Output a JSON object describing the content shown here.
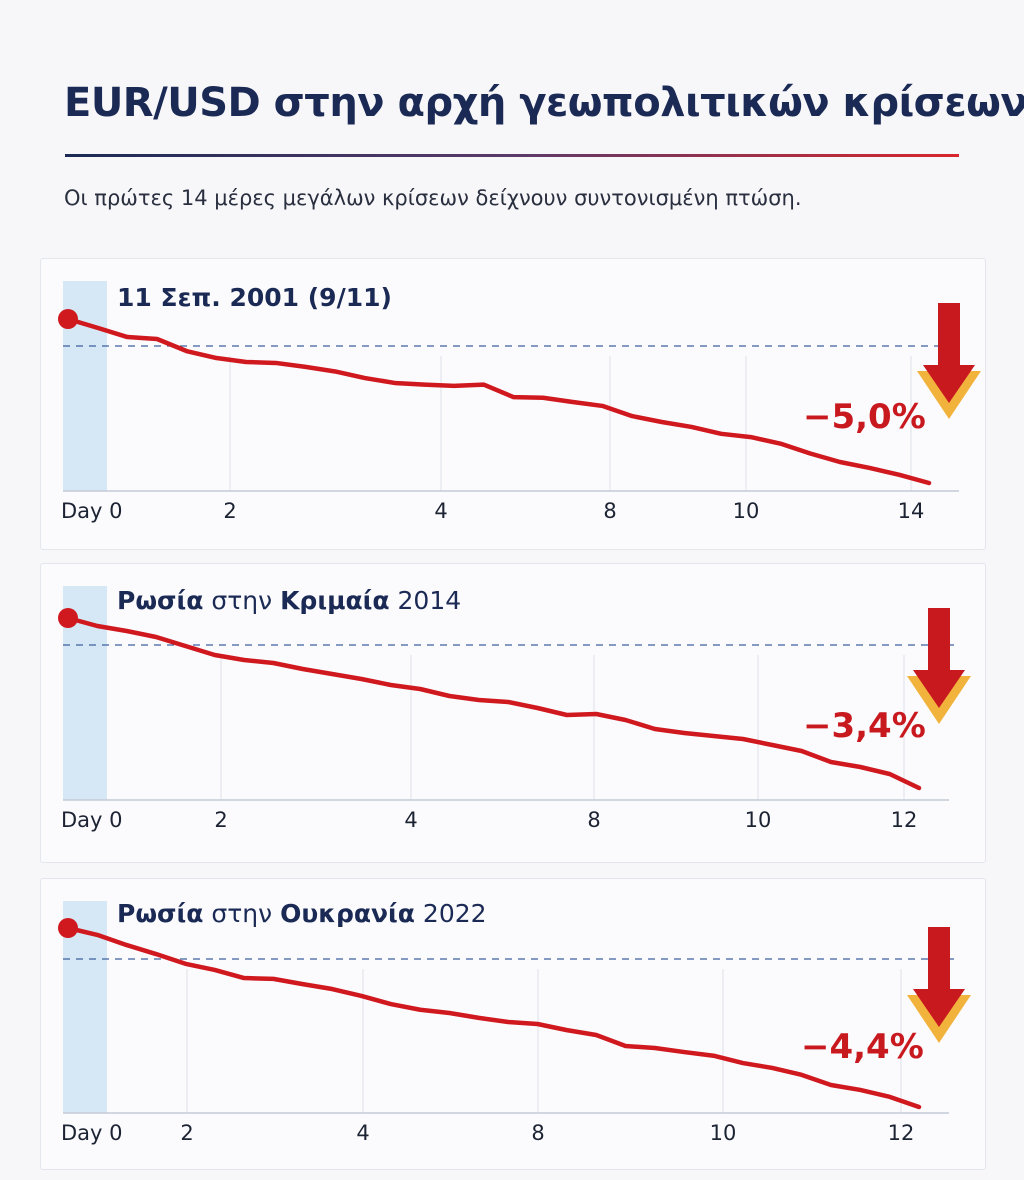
{
  "title": "EUR/USD στην αρχή γεωπολιτικών κρίσεων",
  "subtitle": "Οι πρώτες 14 μέρες μεγάλων κρίσεων δείχνουν συντονισμένη πτώση.",
  "colors": {
    "title": "#1b2a55",
    "line": "#d0191f",
    "arrow": "#c8191f",
    "arrow_outline": "#f2b33d",
    "highlight_band": "#d6e8f6",
    "reference_line": "#3e5f9e"
  },
  "chart_data": [
    {
      "type": "line",
      "title_parts": [
        {
          "text": "11 Σεπ. 2001 (9/11)",
          "bold": true
        }
      ],
      "xlabel": "",
      "ylabel": "",
      "x_tick_labels": [
        "Day 0",
        "2",
        "4",
        "8",
        "10",
        "14"
      ],
      "reference_line": "dashed",
      "grid": "vertical",
      "y_unit": "% change from Day 0",
      "values": [
        0,
        -0.27,
        -0.55,
        -0.61,
        -0.98,
        -1.19,
        -1.31,
        -1.34,
        -1.46,
        -1.6,
        -1.8,
        -1.95,
        -2.0,
        -2.04,
        -2.0,
        -2.38,
        -2.4,
        -2.53,
        -2.65,
        -2.96,
        -3.14,
        -3.29,
        -3.5,
        -3.6,
        -3.8,
        -4.1,
        -4.36,
        -4.54,
        -4.75,
        -5.0
      ],
      "change_label": "−5,0%",
      "icon": "down-arrow-icon"
    },
    {
      "type": "line",
      "title_parts": [
        {
          "text": "Ρωσία",
          "bold": true
        },
        {
          "text": " στην ",
          "bold": false
        },
        {
          "text": "Κριμαία",
          "bold": true
        },
        {
          "text": " 2014",
          "bold": false
        }
      ],
      "xlabel": "",
      "ylabel": "",
      "x_tick_labels": [
        "Day 0",
        "2",
        "4",
        "8",
        "10",
        "12"
      ],
      "reference_line": "dashed",
      "grid": "vertical",
      "y_unit": "% change from Day 0",
      "values": [
        0,
        -0.16,
        -0.26,
        -0.38,
        -0.56,
        -0.74,
        -0.84,
        -0.9,
        -1.02,
        -1.12,
        -1.22,
        -1.34,
        -1.42,
        -1.56,
        -1.64,
        -1.68,
        -1.8,
        -1.94,
        -1.92,
        -2.04,
        -2.22,
        -2.3,
        -2.36,
        -2.42,
        -2.54,
        -2.66,
        -2.88,
        -2.98,
        -3.12,
        -3.4
      ],
      "change_label": "−3,4%",
      "icon": "down-arrow-icon"
    },
    {
      "type": "line",
      "title_parts": [
        {
          "text": "Ρωσία",
          "bold": true
        },
        {
          "text": " στην ",
          "bold": false
        },
        {
          "text": "Ουκρανία",
          "bold": true
        },
        {
          "text": " 2022",
          "bold": false
        }
      ],
      "xlabel": "",
      "ylabel": "",
      "x_tick_labels": [
        "Day 0",
        "2",
        "4",
        "8",
        "10",
        "12"
      ],
      "reference_line": "dashed",
      "grid": "vertical",
      "y_unit": "% change from Day 0",
      "values": [
        0,
        -0.17,
        -0.42,
        -0.64,
        -0.88,
        -1.03,
        -1.23,
        -1.25,
        -1.38,
        -1.5,
        -1.67,
        -1.87,
        -2.01,
        -2.09,
        -2.21,
        -2.31,
        -2.36,
        -2.51,
        -2.63,
        -2.9,
        -2.95,
        -3.05,
        -3.14,
        -3.32,
        -3.44,
        -3.61,
        -3.86,
        -3.98,
        -4.15,
        -4.4
      ],
      "change_label": "−4,4%",
      "icon": "down-arrow-icon"
    }
  ]
}
